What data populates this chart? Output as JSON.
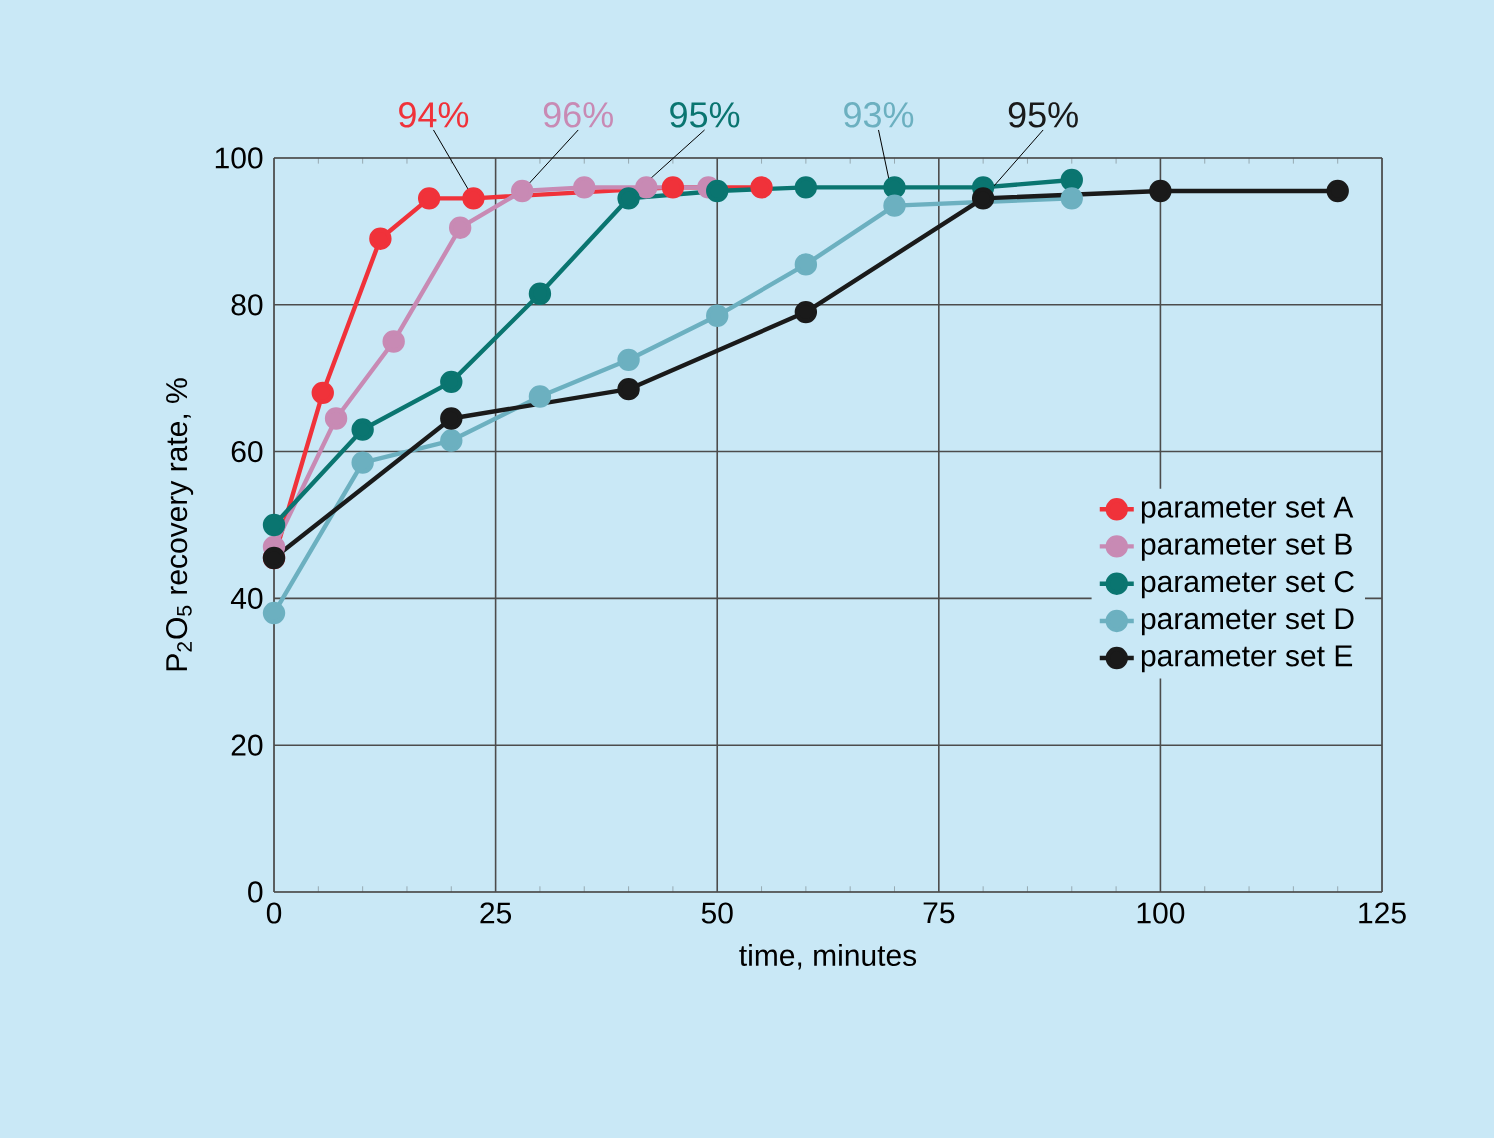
{
  "chart_data": {
    "type": "line",
    "xlabel": "time, minutes",
    "ylabel": "P$_{2}$O$_{5}$ recovery rate, %",
    "xlim": [
      0,
      125
    ],
    "xticks": [
      0,
      25,
      50,
      75,
      100,
      125
    ],
    "ylim": [
      0,
      100
    ],
    "yticks": [
      0,
      20,
      40,
      60,
      80,
      100
    ],
    "grid": true,
    "legend": "right",
    "marker": "circle",
    "line_style": "solid",
    "series": [
      {
        "name": "parameter set A",
        "color": "#f0323a",
        "x": [
          0,
          5.5,
          12,
          17.5,
          22.5,
          28,
          45,
          55
        ],
        "values": [
          45.5,
          68,
          89,
          94.5,
          94.5,
          null,
          96,
          96
        ]
      },
      {
        "name": "parameter set B",
        "color": "#c88ab4",
        "x": [
          0,
          7,
          13.5,
          21,
          28,
          35,
          42,
          49
        ],
        "values": [
          47,
          64.5,
          75,
          90.5,
          95.5,
          96,
          96,
          96
        ]
      },
      {
        "name": "parameter set C",
        "color": "#0a7570",
        "x": [
          0,
          10,
          20,
          30,
          40,
          50,
          60,
          70,
          80,
          90
        ],
        "values": [
          50,
          63,
          69.5,
          81.5,
          94.5,
          95.5,
          96,
          96,
          96,
          97
        ]
      },
      {
        "name": "parameter set D",
        "color": "#6cb0c0",
        "x": [
          0,
          10,
          20,
          30,
          40,
          50,
          60,
          70,
          80,
          90
        ],
        "values": [
          38,
          58.5,
          61.5,
          67.5,
          72.5,
          78.5,
          85.5,
          93.5,
          null,
          94.5
        ]
      },
      {
        "name": "parameter set E",
        "color": "#1a1a1a",
        "x": [
          0,
          20,
          40,
          60,
          80,
          100,
          120
        ],
        "values": [
          45.5,
          64.5,
          68.5,
          79,
          94.5,
          95.5,
          95.5
        ]
      }
    ],
    "annotations": [
      {
        "text": "94%",
        "x": 22.5,
        "y": 94.5
      },
      {
        "text": "96%",
        "x": 28,
        "y": 95.5
      },
      {
        "text": "95%",
        "x": 40,
        "y": 94.5
      },
      {
        "text": "93%",
        "x": 70,
        "y": 93.5
      },
      {
        "text": "95%",
        "x": 80,
        "y": 94.5
      }
    ]
  }
}
